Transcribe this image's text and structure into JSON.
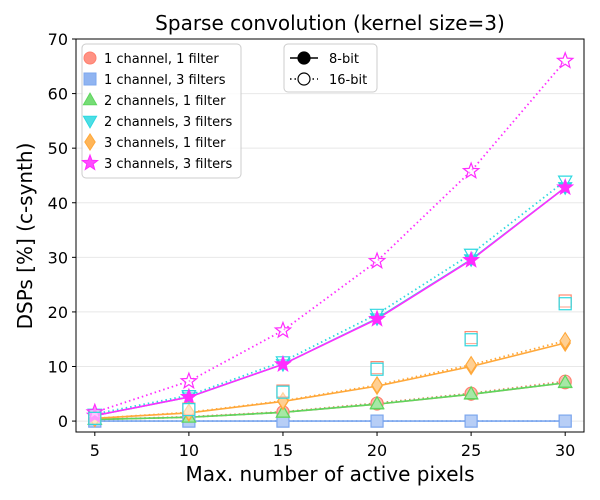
{
  "chart_data": {
    "type": "line",
    "title": "Sparse convolution (kernel size=3)",
    "xlabel": "Max. number of active pixels",
    "ylabel": "DSPs [%] (c-synth)",
    "x": [
      5,
      10,
      15,
      20,
      25,
      30
    ],
    "xlim": [
      4,
      31
    ],
    "ylim": [
      -2,
      70
    ],
    "xticks": [
      5,
      10,
      15,
      20,
      25,
      30
    ],
    "yticks": [
      0,
      10,
      20,
      30,
      40,
      50,
      60,
      70
    ],
    "grid": "horizontal",
    "legend_series_location": "upper-left",
    "legend_style_location": "upper-center",
    "styles": [
      {
        "name": "8-bit",
        "linestyle": "solid",
        "marker_fill": "filled"
      },
      {
        "name": "16-bit",
        "linestyle": "dotted",
        "marker_fill": "hollow"
      }
    ],
    "series": [
      {
        "name": "1 channel, 1 filter",
        "color": "#ff7f6e",
        "marker": "circle",
        "values_8bit": [
          0.3,
          0.7,
          1.6,
          3.1,
          4.9,
          7.0
        ],
        "values_16bit": [
          0.3,
          0.8,
          1.7,
          3.3,
          5.1,
          7.3
        ]
      },
      {
        "name": "1 channel, 3 filters",
        "color": "#7da7ee",
        "marker": "square",
        "values_8bit": [
          0,
          0,
          0,
          0,
          0,
          0
        ],
        "values_16bit": [
          0,
          0,
          0,
          0,
          0,
          0
        ]
      },
      {
        "name": "2 channels, 1 filter",
        "color": "#5ed65e",
        "marker": "triangle-up",
        "values_8bit": [
          0.3,
          0.7,
          1.6,
          3.1,
          4.9,
          7.0
        ],
        "values_16bit": [
          0.3,
          0.7,
          1.6,
          3.2,
          5.0,
          7.1
        ]
      },
      {
        "name": "2 channels, 3 filters",
        "color": "#2dd8e0",
        "marker": "triangle-down",
        "values_8bit": [
          1.0,
          4.4,
          10.4,
          18.8,
          29.6,
          42.8
        ],
        "values_16bit": [
          1.3,
          4.7,
          10.9,
          19.6,
          30.6,
          44.0
        ]
      },
      {
        "name": "3 channels, 1 filter",
        "color": "#ffa83a",
        "marker": "diamond",
        "values_8bit": [
          0.5,
          1.5,
          3.6,
          6.4,
          10.0,
          14.3
        ],
        "values_16bit": [
          0.5,
          1.6,
          3.7,
          6.6,
          10.3,
          14.7
        ]
      },
      {
        "name": "3 channels, 3 filters",
        "color": "#ff2cff",
        "marker": "star",
        "values_8bit": [
          1.0,
          4.4,
          10.4,
          18.7,
          29.5,
          42.8
        ],
        "values_16bit": [
          1.6,
          7.3,
          16.6,
          29.3,
          45.8,
          66.0
        ]
      }
    ],
    "overlay_series": [
      {
        "name": "1 channel, 3 filters (16-bit)",
        "color": "#ff8a70",
        "marker": "square",
        "values": [
          0.5,
          2.2,
          5.5,
          9.8,
          15.3,
          22.0
        ]
      },
      {
        "name": "1 channel, 3 filters (8-bit)",
        "color": "#2dd8e0",
        "marker": "square",
        "values": [
          0.5,
          2.1,
          5.3,
          9.5,
          14.9,
          21.5
        ]
      }
    ]
  }
}
